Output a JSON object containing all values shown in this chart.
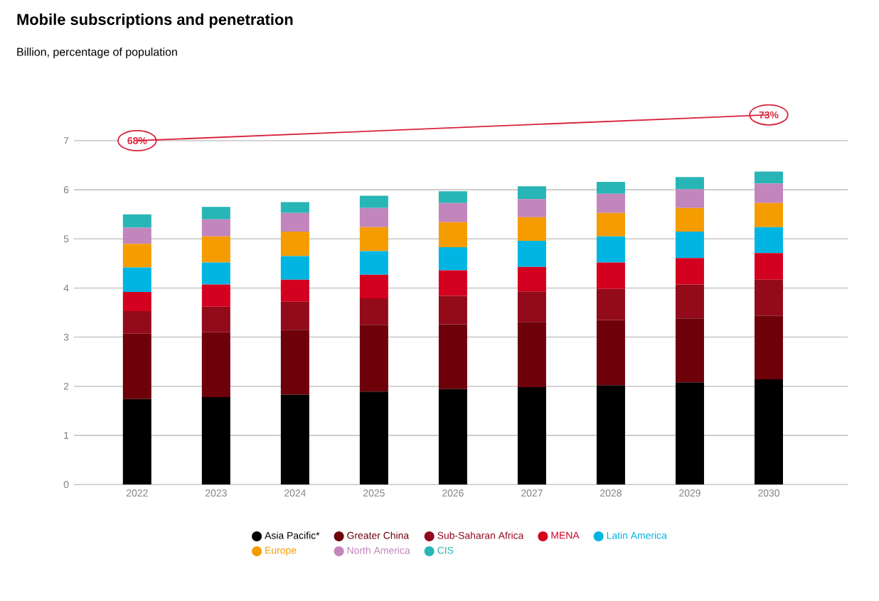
{
  "chart_data": {
    "type": "bar",
    "stacked": true,
    "title": "Mobile subscriptions and penetration",
    "subtitle": "Billion, percentage of population",
    "categories": [
      "2022",
      "2023",
      "2024",
      "2025",
      "2026",
      "2027",
      "2028",
      "2029",
      "2030"
    ],
    "series": [
      {
        "name": "Asia Pacific*",
        "color": "#000000",
        "values": [
          1.74,
          1.78,
          1.83,
          1.89,
          1.94,
          1.98,
          2.02,
          2.08,
          2.14
        ]
      },
      {
        "name": "Greater China",
        "color": "#6e0009",
        "values": [
          1.33,
          1.32,
          1.32,
          1.36,
          1.32,
          1.33,
          1.33,
          1.3,
          1.29
        ]
      },
      {
        "name": "Sub-Saharan Africa",
        "color": "#930a1a",
        "values": [
          0.46,
          0.52,
          0.57,
          0.54,
          0.58,
          0.62,
          0.63,
          0.69,
          0.74
        ]
      },
      {
        "name": "MENA",
        "color": "#d4001f",
        "values": [
          0.39,
          0.45,
          0.45,
          0.48,
          0.52,
          0.5,
          0.54,
          0.54,
          0.54
        ]
      },
      {
        "name": "Latin America",
        "color": "#00b5e2",
        "values": [
          0.5,
          0.45,
          0.48,
          0.48,
          0.47,
          0.53,
          0.53,
          0.54,
          0.53
        ]
      },
      {
        "name": "Europe",
        "color": "#f59c00",
        "values": [
          0.48,
          0.53,
          0.5,
          0.49,
          0.51,
          0.48,
          0.48,
          0.48,
          0.49
        ]
      },
      {
        "name": "North America",
        "color": "#c285bc",
        "values": [
          0.33,
          0.35,
          0.38,
          0.39,
          0.39,
          0.37,
          0.39,
          0.38,
          0.4
        ]
      },
      {
        "name": "CIS",
        "color": "#28b5b5",
        "values": [
          0.27,
          0.25,
          0.22,
          0.25,
          0.24,
          0.26,
          0.24,
          0.25,
          0.24
        ]
      }
    ],
    "ylim": [
      0,
      7
    ],
    "yticks": [
      0,
      1,
      2,
      3,
      4,
      5,
      6,
      7
    ],
    "grid": "y",
    "legend": "bottom",
    "annotations": [
      "68%",
      "73%"
    ]
  }
}
